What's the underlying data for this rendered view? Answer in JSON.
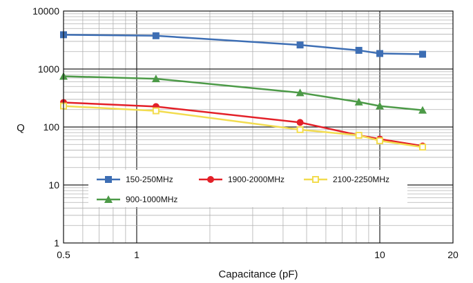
{
  "chart_data": {
    "type": "line",
    "title": "",
    "xlabel": "Capacitance (pF)",
    "ylabel": "Q",
    "x_scale": "log",
    "y_scale": "log",
    "xlim": [
      0.5,
      20
    ],
    "ylim": [
      1,
      10000
    ],
    "x_ticks": [
      {
        "value": 0.5,
        "label": "0.5"
      },
      {
        "value": 1,
        "label": "1"
      },
      {
        "value": 10,
        "label": "10"
      },
      {
        "value": 20,
        "label": "20"
      }
    ],
    "y_ticks": [
      {
        "value": 1,
        "label": "1"
      },
      {
        "value": 10,
        "label": "10"
      },
      {
        "value": 100,
        "label": "100"
      },
      {
        "value": 1000,
        "label": "1000"
      },
      {
        "value": 10000,
        "label": "10000"
      }
    ],
    "grid": true,
    "legend_position": "lower-left",
    "series": [
      {
        "name": "150-250MHz",
        "color": "#3d6eb4",
        "marker": "square",
        "x": [
          0.5,
          1.2,
          4.7,
          8.2,
          10,
          15
        ],
        "y": [
          3900,
          3750,
          2600,
          2100,
          1850,
          1800
        ]
      },
      {
        "name": "1900-2000MHz",
        "color": "#e32028",
        "marker": "circle",
        "x": [
          0.5,
          1.2,
          4.7,
          8.2,
          10,
          15
        ],
        "y": [
          265,
          225,
          120,
          72,
          62,
          47
        ]
      },
      {
        "name": "2100-2250MHz",
        "color": "#f2dc4f",
        "marker": "hollow-square",
        "x": [
          0.5,
          1.2,
          4.7,
          8.2,
          10,
          15
        ],
        "y": [
          230,
          190,
          90,
          72,
          58,
          45
        ]
      },
      {
        "name": "900-1000MHz",
        "color": "#4c9a47",
        "marker": "triangle",
        "x": [
          0.5,
          1.2,
          4.7,
          8.2,
          10,
          15
        ],
        "y": [
          750,
          680,
          390,
          270,
          230,
          195
        ]
      }
    ]
  }
}
